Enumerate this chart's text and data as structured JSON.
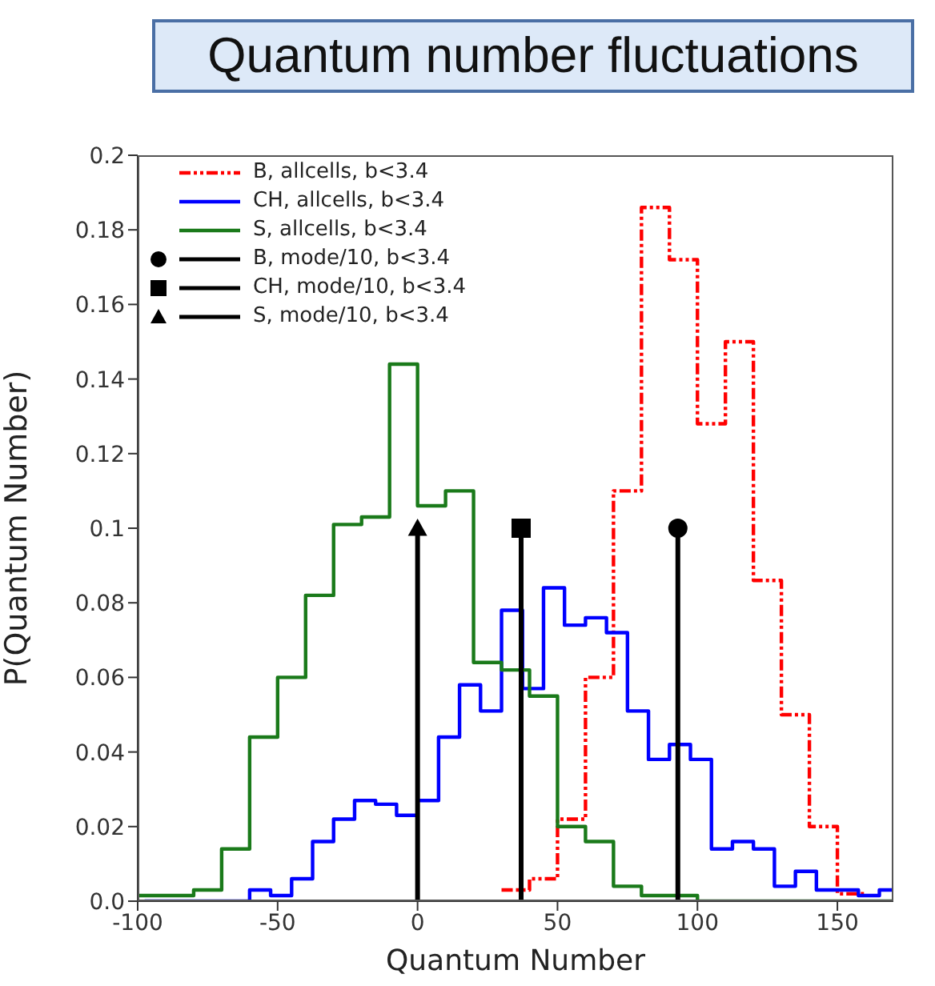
{
  "chart_data": {
    "type": "histogram",
    "title": "Quantum number fluctuations",
    "xlabel": "Quantum Number",
    "ylabel": "P(Quantum Number)",
    "xlim": [
      -100,
      170
    ],
    "xticks": [
      -100,
      -50,
      0,
      50,
      100,
      150
    ],
    "ylim": [
      0,
      0.2
    ],
    "yticks": [
      {
        "value": 0,
        "label": "0.0"
      },
      0.02,
      0.04,
      0.06,
      0.08,
      0.1,
      0.12,
      0.14,
      0.16,
      0.18,
      0.2
    ],
    "grid": false,
    "legend": "top left",
    "series": [
      {
        "name": "B, allcells, b<3.4",
        "color": "#ff0000",
        "line_style": "dashed",
        "bins": [
          30,
          40,
          50,
          60,
          70,
          80,
          90,
          100,
          110,
          120,
          130,
          140,
          150,
          160
        ],
        "values": [
          0.003,
          0.006,
          0.022,
          0.06,
          0.11,
          0.186,
          0.172,
          0.128,
          0.15,
          0.086,
          0.05,
          0.02,
          0.002
        ]
      },
      {
        "name": "CH, allcells, b<3.4",
        "color": "#0000ff",
        "bins": [
          -97.5,
          -90,
          -82.5,
          -75,
          -67.5,
          -60,
          -52.5,
          -45,
          -37.5,
          -30,
          -22.5,
          -15,
          -7.5,
          0,
          7.5,
          15,
          22.5,
          30,
          37.5,
          45,
          52.5,
          60,
          67.5,
          75,
          82.5,
          90,
          97.5,
          105,
          112.5,
          120,
          127.5,
          135,
          142.5,
          150,
          157.5,
          165,
          170
        ],
        "values": [
          0,
          0,
          0,
          0,
          0,
          0.003,
          0.0015,
          0.006,
          0.016,
          0.022,
          0.027,
          0.026,
          0.023,
          0.027,
          0.044,
          0.058,
          0.051,
          0.078,
          0.057,
          0.084,
          0.074,
          0.076,
          0.072,
          0.051,
          0.038,
          0.042,
          0.038,
          0.014,
          0.016,
          0.014,
          0.004,
          0.008,
          0.003,
          0.003,
          0.0015,
          0.003
        ]
      },
      {
        "name": "S, allcells, b<3.4",
        "color": "#1a7a1a",
        "bins": [
          -100,
          -90,
          -80,
          -70,
          -60,
          -50,
          -40,
          -30,
          -20,
          -10,
          0,
          10,
          20,
          30,
          40,
          50,
          60,
          70,
          80,
          90,
          100,
          110,
          120,
          130,
          140,
          150,
          160,
          170
        ],
        "values": [
          0.0015,
          0.0015,
          0.003,
          0.014,
          0.044,
          0.06,
          0.082,
          0.101,
          0.103,
          0.144,
          0.106,
          0.11,
          0.064,
          0.062,
          0.055,
          0.02,
          0.016,
          0.004,
          0.0015,
          0.0015,
          0,
          0,
          0,
          0,
          0,
          0,
          0
        ]
      },
      {
        "name": "B, mode/10, b<3.4",
        "type": "lollipop",
        "color": "#000000",
        "marker": "circle",
        "x": [
          93
        ],
        "values": [
          0.1
        ]
      },
      {
        "name": "CH, mode/10, b<3.4",
        "type": "lollipop",
        "color": "#000000",
        "marker": "square",
        "x": [
          37
        ],
        "values": [
          0.1
        ]
      },
      {
        "name": "S, mode/10, b<3.4",
        "type": "lollipop",
        "color": "#000000",
        "marker": "triangle",
        "x": [
          0
        ],
        "values": [
          0.1
        ]
      }
    ]
  }
}
